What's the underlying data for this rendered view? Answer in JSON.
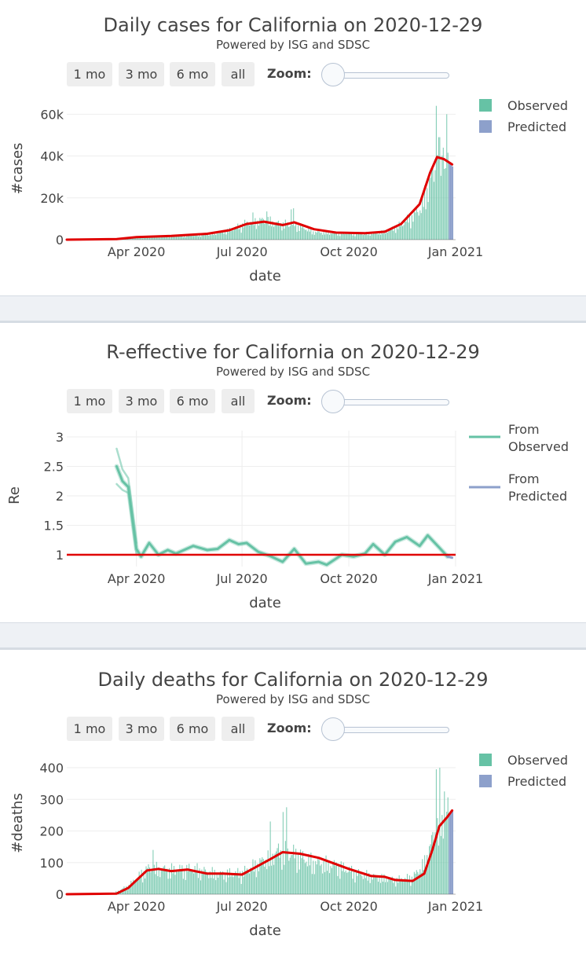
{
  "controls": {
    "buttons": [
      "1 mo",
      "3 mo",
      "6 mo",
      "all"
    ],
    "zoom_label": "Zoom:"
  },
  "colors": {
    "observed": "#66c2a5",
    "predicted": "#8da0cb",
    "trend": "#e00000"
  },
  "charts": [
    {
      "title": "Daily cases for California on 2020-12-29",
      "subtitle": "Powered by ISG and SDSC",
      "chart_data": {
        "type": "bar",
        "xlabel": "date",
        "ylabel": "#cases",
        "x_ticks": [
          "Apr 2020",
          "Jul 2020",
          "Oct 2020",
          "Jan 2021"
        ],
        "x_tick_dates": [
          "2020-04-01",
          "2020-07-01",
          "2020-10-01",
          "2021-01-01"
        ],
        "xlim": [
          "2020-02-01",
          "2021-01-01"
        ],
        "y_ticks": [
          "0",
          "20k",
          "40k",
          "60k"
        ],
        "y_tick_values": [
          0,
          20000,
          40000,
          60000
        ],
        "ylim": [
          0,
          62000
        ],
        "legend": [
          "Observed",
          "Predicted"
        ],
        "legend_position": "top-right",
        "observed_envelope": [
          [
            "2020-02-01",
            0
          ],
          [
            "2020-03-15",
            300
          ],
          [
            "2020-04-01",
            1200
          ],
          [
            "2020-05-01",
            1800
          ],
          [
            "2020-06-01",
            2800
          ],
          [
            "2020-06-20",
            5000
          ],
          [
            "2020-07-05",
            9000
          ],
          [
            "2020-07-20",
            10500
          ],
          [
            "2020-08-01",
            8500
          ],
          [
            "2020-08-15",
            8000
          ],
          [
            "2020-09-01",
            4000
          ],
          [
            "2020-09-20",
            3400
          ],
          [
            "2020-10-15",
            3200
          ],
          [
            "2020-11-01",
            4200
          ],
          [
            "2020-11-15",
            8000
          ],
          [
            "2020-12-01",
            16000
          ],
          [
            "2020-12-10",
            32000
          ],
          [
            "2020-12-18",
            42000
          ],
          [
            "2020-12-25",
            38000
          ]
        ],
        "observed_spikes": [
          [
            "2020-07-10",
            13000
          ],
          [
            "2020-07-22",
            13500
          ],
          [
            "2020-08-12",
            14500
          ],
          [
            "2020-08-14",
            15000
          ],
          [
            "2020-12-15",
            64000
          ],
          [
            "2020-12-17",
            49000
          ],
          [
            "2020-12-21",
            44000
          ],
          [
            "2020-12-24",
            60000
          ]
        ],
        "predicted": [
          [
            "2020-12-26",
            36500
          ],
          [
            "2020-12-27",
            36000
          ],
          [
            "2020-12-28",
            35500
          ],
          [
            "2020-12-29",
            35000
          ]
        ],
        "trend": [
          [
            "2020-02-01",
            0
          ],
          [
            "2020-03-15",
            300
          ],
          [
            "2020-04-01",
            1200
          ],
          [
            "2020-05-01",
            1800
          ],
          [
            "2020-06-01",
            2800
          ],
          [
            "2020-06-20",
            4500
          ],
          [
            "2020-07-05",
            7500
          ],
          [
            "2020-07-20",
            8600
          ],
          [
            "2020-08-05",
            7000
          ],
          [
            "2020-08-15",
            8300
          ],
          [
            "2020-09-01",
            5000
          ],
          [
            "2020-09-20",
            3400
          ],
          [
            "2020-10-15",
            3100
          ],
          [
            "2020-11-01",
            3800
          ],
          [
            "2020-11-15",
            7500
          ],
          [
            "2020-12-01",
            17000
          ],
          [
            "2020-12-10",
            32000
          ],
          [
            "2020-12-16",
            39500
          ],
          [
            "2020-12-22",
            38500
          ],
          [
            "2020-12-29",
            36000
          ]
        ]
      }
    },
    {
      "title": "R-effective for California on 2020-12-29",
      "subtitle": "Powered by ISG and SDSC",
      "chart_data": {
        "type": "line",
        "xlabel": "date",
        "ylabel": "Re",
        "x_ticks": [
          "Apr 2020",
          "Jul 2020",
          "Oct 2020",
          "Jan 2021"
        ],
        "x_tick_dates": [
          "2020-04-01",
          "2020-07-01",
          "2020-10-01",
          "2021-01-01"
        ],
        "xlim": [
          "2020-02-01",
          "2021-01-01"
        ],
        "y_ticks": [
          "1",
          "1.5",
          "2",
          "2.5",
          "3"
        ],
        "y_tick_values": [
          1,
          1.5,
          2,
          2.5,
          3
        ],
        "ylim": [
          0.8,
          3.0
        ],
        "legend": [
          "From Observed",
          "From Predicted"
        ],
        "legend_position": "top-right",
        "series_upper": [
          [
            "2020-03-15",
            2.8
          ],
          [
            "2020-03-20",
            2.45
          ],
          [
            "2020-03-25",
            2.3
          ],
          [
            "2020-04-01",
            1.2
          ]
        ],
        "series_lower": [
          [
            "2020-03-15",
            2.2
          ],
          [
            "2020-03-20",
            2.1
          ],
          [
            "2020-03-25",
            2.05
          ],
          [
            "2020-04-01",
            1.0
          ]
        ],
        "observed": [
          [
            "2020-03-15",
            2.5
          ],
          [
            "2020-03-20",
            2.25
          ],
          [
            "2020-03-25",
            2.15
          ],
          [
            "2020-04-01",
            1.1
          ],
          [
            "2020-04-05",
            0.97
          ],
          [
            "2020-04-12",
            1.2
          ],
          [
            "2020-04-20",
            1.0
          ],
          [
            "2020-04-28",
            1.08
          ],
          [
            "2020-05-05",
            1.02
          ],
          [
            "2020-05-20",
            1.15
          ],
          [
            "2020-06-01",
            1.08
          ],
          [
            "2020-06-10",
            1.1
          ],
          [
            "2020-06-20",
            1.25
          ],
          [
            "2020-06-28",
            1.18
          ],
          [
            "2020-07-05",
            1.2
          ],
          [
            "2020-07-15",
            1.05
          ],
          [
            "2020-07-25",
            0.98
          ],
          [
            "2020-08-05",
            0.88
          ],
          [
            "2020-08-15",
            1.1
          ],
          [
            "2020-08-25",
            0.85
          ],
          [
            "2020-09-05",
            0.88
          ],
          [
            "2020-09-12",
            0.83
          ],
          [
            "2020-09-25",
            1.0
          ],
          [
            "2020-10-05",
            0.97
          ],
          [
            "2020-10-15",
            1.02
          ],
          [
            "2020-10-22",
            1.18
          ],
          [
            "2020-11-01",
            1.0
          ],
          [
            "2020-11-10",
            1.22
          ],
          [
            "2020-11-20",
            1.3
          ],
          [
            "2020-12-01",
            1.15
          ],
          [
            "2020-12-08",
            1.33
          ],
          [
            "2020-12-18",
            1.12
          ],
          [
            "2020-12-25",
            0.97
          ]
        ],
        "predicted": [
          [
            "2020-12-25",
            0.97
          ],
          [
            "2020-12-29",
            0.95
          ]
        ],
        "reference_line": 1
      }
    },
    {
      "title": "Daily deaths for California on 2020-12-29",
      "subtitle": "Powered by ISG and SDSC",
      "chart_data": {
        "type": "bar",
        "xlabel": "date",
        "ylabel": "#deaths",
        "x_ticks": [
          "Apr 2020",
          "Jul 2020",
          "Oct 2020",
          "Jan 2021"
        ],
        "x_tick_dates": [
          "2020-04-01",
          "2020-07-01",
          "2020-10-01",
          "2021-01-01"
        ],
        "xlim": [
          "2020-02-01",
          "2021-01-01"
        ],
        "y_ticks": [
          "0",
          "100",
          "200",
          "300",
          "400"
        ],
        "y_tick_values": [
          0,
          100,
          200,
          300,
          400
        ],
        "ylim": [
          0,
          410
        ],
        "legend": [
          "Observed",
          "Predicted"
        ],
        "legend_position": "top-right",
        "observed_envelope": [
          [
            "2020-02-01",
            0
          ],
          [
            "2020-03-10",
            0
          ],
          [
            "2020-03-25",
            30
          ],
          [
            "2020-04-10",
            90
          ],
          [
            "2020-05-01",
            85
          ],
          [
            "2020-05-20",
            88
          ],
          [
            "2020-06-10",
            70
          ],
          [
            "2020-07-01",
            75
          ],
          [
            "2020-07-20",
            120
          ],
          [
            "2020-08-01",
            150
          ],
          [
            "2020-08-15",
            140
          ],
          [
            "2020-09-01",
            110
          ],
          [
            "2020-09-20",
            100
          ],
          [
            "2020-10-10",
            70
          ],
          [
            "2020-10-25",
            60
          ],
          [
            "2020-11-10",
            50
          ],
          [
            "2020-11-25",
            60
          ],
          [
            "2020-12-05",
            110
          ],
          [
            "2020-12-15",
            230
          ],
          [
            "2020-12-25",
            280
          ]
        ],
        "observed_spikes": [
          [
            "2020-04-15",
            140
          ],
          [
            "2020-07-25",
            230
          ],
          [
            "2020-08-05",
            260
          ],
          [
            "2020-08-08",
            275
          ],
          [
            "2020-12-15",
            395
          ],
          [
            "2020-12-18",
            400
          ],
          [
            "2020-12-22",
            325
          ]
        ],
        "predicted": [
          [
            "2020-12-26",
            255
          ],
          [
            "2020-12-27",
            258
          ],
          [
            "2020-12-28",
            262
          ],
          [
            "2020-12-29",
            265
          ]
        ],
        "trend": [
          [
            "2020-02-01",
            0
          ],
          [
            "2020-03-15",
            2
          ],
          [
            "2020-03-25",
            20
          ],
          [
            "2020-04-10",
            75
          ],
          [
            "2020-04-20",
            80
          ],
          [
            "2020-05-01",
            73
          ],
          [
            "2020-05-15",
            78
          ],
          [
            "2020-06-01",
            65
          ],
          [
            "2020-06-15",
            65
          ],
          [
            "2020-07-01",
            62
          ],
          [
            "2020-07-10",
            80
          ],
          [
            "2020-07-25",
            110
          ],
          [
            "2020-08-05",
            133
          ],
          [
            "2020-08-20",
            128
          ],
          [
            "2020-09-05",
            115
          ],
          [
            "2020-09-20",
            95
          ],
          [
            "2020-10-01",
            80
          ],
          [
            "2020-10-20",
            58
          ],
          [
            "2020-11-01",
            55
          ],
          [
            "2020-11-10",
            45
          ],
          [
            "2020-11-25",
            42
          ],
          [
            "2020-12-05",
            65
          ],
          [
            "2020-12-12",
            140
          ],
          [
            "2020-12-18",
            215
          ],
          [
            "2020-12-25",
            245
          ],
          [
            "2020-12-29",
            265
          ]
        ]
      }
    }
  ]
}
